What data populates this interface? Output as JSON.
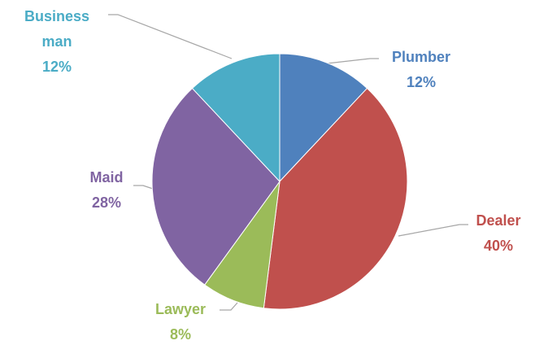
{
  "chart_data": {
    "type": "pie",
    "categories": [
      "Plumber",
      "Dealer",
      "Lawyer",
      "Maid",
      "Businessman"
    ],
    "values": [
      12,
      40,
      8,
      28,
      12
    ],
    "value_labels": [
      "12%",
      "40%",
      "8%",
      "28%",
      "12%"
    ],
    "colors": [
      "#4f81bd",
      "#c0504d",
      "#9bbb59",
      "#8064a2",
      "#4bacc6"
    ]
  }
}
